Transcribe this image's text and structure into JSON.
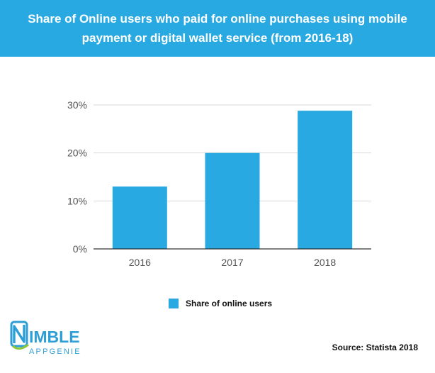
{
  "header": {
    "title_line1": "Share of Online users who paid for online purchases using mobile",
    "title_line2": "payment or digital wallet service (from 2016-18)",
    "background": "#29a9e1"
  },
  "chart_data": {
    "type": "bar",
    "title": "Share of Online users who paid for online purchases using mobile payment or digital wallet service (from 2016-18)",
    "categories": [
      "2016",
      "2017",
      "2018"
    ],
    "series": [
      {
        "name": "Share of online users",
        "values": [
          13,
          20,
          28.8
        ],
        "color": "#29a9e1"
      }
    ],
    "ylim": [
      0,
      30
    ],
    "yticks": [
      0,
      10,
      20,
      30
    ],
    "ytick_labels": [
      "0%",
      "10%",
      "20%",
      "30%"
    ],
    "xlabel": "",
    "ylabel": "",
    "grid": true,
    "legend_position": "bottom-center"
  },
  "legend": {
    "label": "Share of online users",
    "color": "#29a9e1"
  },
  "logo": {
    "word1": "IMBLE",
    "word2": "APPGENIE",
    "primary_color": "#2e9fd6",
    "accent_color": "#8cc63f"
  },
  "source": {
    "text": "Source: Statista 2018"
  }
}
